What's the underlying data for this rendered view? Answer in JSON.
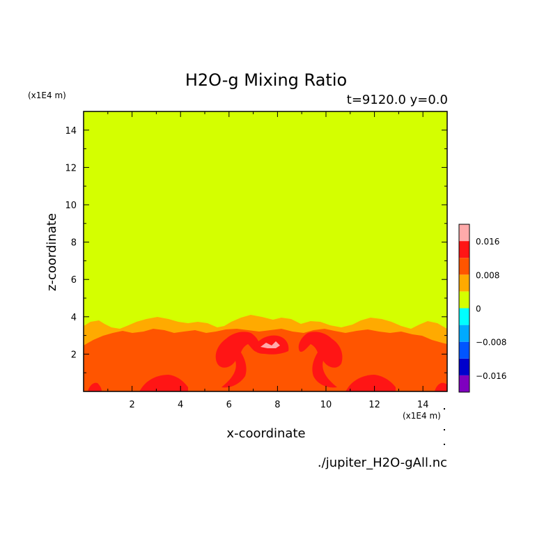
{
  "chart_data": {
    "type": "heatmap",
    "title": "H2O-g Mixing Ratio",
    "subtitle": "t=9120.0 y=0.0",
    "xlabel": "x-coordinate",
    "ylabel": "z-coordinate",
    "x_unit": "(x1E4 m)",
    "y_unit": "(x1E4 m)",
    "xlim": [
      0.0,
      15.0
    ],
    "ylim": [
      0.0,
      15.0
    ],
    "x_ticks": [
      2,
      4,
      6,
      8,
      10,
      12,
      14
    ],
    "y_ticks": [
      2,
      4,
      6,
      8,
      10,
      12,
      14
    ],
    "x_tick_labels": [
      "2",
      "4",
      "6",
      "8",
      "10",
      "12",
      "14"
    ],
    "y_tick_labels": [
      "2",
      "4",
      "6",
      "8",
      "10",
      "12",
      "14"
    ],
    "colorbar": {
      "levels": [
        -0.02,
        -0.016,
        -0.012,
        -0.008,
        -0.004,
        0,
        0.004,
        0.008,
        0.012,
        0.016,
        0.02
      ],
      "colors": [
        "#7f00bf",
        "#0000cc",
        "#0055ff",
        "#00aaff",
        "#00ffff",
        "#d4ff00",
        "#ffaa00",
        "#ff5500",
        "#ff1515",
        "#ffaaaa"
      ],
      "tick_values": [
        -0.016,
        -0.008,
        0,
        0.008,
        0.016
      ],
      "tick_labels": [
        "−0.016",
        "−0.008",
        "0",
        "0.008",
        "0.016"
      ]
    },
    "dominant_fields": [
      {
        "region": "upper domain",
        "z_range": [
          3.5,
          15.0
        ],
        "level_range": [
          0,
          0.004
        ]
      },
      {
        "region": "transition layer",
        "z_range": [
          2.8,
          4.0
        ],
        "level_range": [
          0.004,
          0.008
        ]
      },
      {
        "region": "lower layer",
        "z_range": [
          0.0,
          3.0
        ],
        "level_range": [
          0.008,
          0.012
        ]
      },
      {
        "region": "plumes",
        "z_range": [
          0.0,
          2.7
        ],
        "level_range": [
          0.012,
          0.016
        ]
      }
    ]
  },
  "footer": {
    "filename": "./jupiter_H2O-gAll.nc"
  }
}
